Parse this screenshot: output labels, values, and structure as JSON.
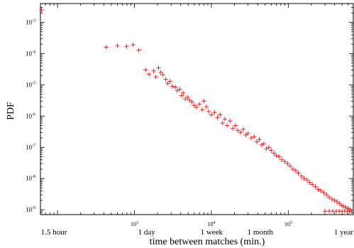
{
  "chart_data": {
    "type": "scatter",
    "xlabel": "time between matches (min.)",
    "ylabel": "PDF",
    "x_scale": "log",
    "y_scale": "log",
    "xlim": [
      60,
      700000
    ],
    "ylim": [
      7e-10,
      0.004
    ],
    "marker": "+",
    "marker_color": "#ee2222",
    "x_ticks": [
      {
        "value": 1000,
        "base": "10",
        "exp": "3"
      },
      {
        "value": 10000,
        "base": "10",
        "exp": "4"
      },
      {
        "value": 100000,
        "base": "10",
        "exp": "5"
      }
    ],
    "x_time_labels": [
      {
        "value": 90,
        "label": "1.5 hour"
      },
      {
        "value": 1440,
        "label": "1 day"
      },
      {
        "value": 10080,
        "label": "1 week"
      },
      {
        "value": 43200,
        "label": "1 month"
      },
      {
        "value": 525600,
        "label": "1 year"
      }
    ],
    "y_ticks": [
      {
        "value": 1e-09,
        "base": "10",
        "exp": "-9"
      },
      {
        "value": 1e-08,
        "base": "10",
        "exp": "-8"
      },
      {
        "value": 1e-07,
        "base": "10",
        "exp": "-7"
      },
      {
        "value": 1e-06,
        "base": "10",
        "exp": "-6"
      },
      {
        "value": 1e-05,
        "base": "10",
        "exp": "-5"
      },
      {
        "value": 0.0001,
        "base": "10",
        "exp": "-4"
      },
      {
        "value": 0.001,
        "base": "10",
        "exp": "-3"
      }
    ],
    "points": [
      [
        62,
        0.0025
      ],
      [
        430,
        0.00016
      ],
      [
        600,
        0.00018
      ],
      [
        790,
        0.00017
      ],
      [
        960,
        0.00019
      ],
      [
        1140,
        0.00013
      ],
      [
        1400,
        3e-05
      ],
      [
        1550,
        2.2e-05
      ],
      [
        1780,
        2.8e-05
      ],
      [
        1900,
        1.8e-05
      ],
      [
        2060,
        3.5e-05
      ],
      [
        2200,
        2.5e-05
      ],
      [
        2350,
        2.1e-05
      ],
      [
        2550,
        1.5e-05
      ],
      [
        2700,
        1.1e-05
      ],
      [
        2900,
        1.3e-05
      ],
      [
        3100,
        9e-06
      ],
      [
        3400,
        8.5e-06
      ],
      [
        3600,
        6.5e-06
      ],
      [
        3900,
        7.2e-06
      ],
      [
        4100,
        4.5e-06
      ],
      [
        4300,
        5.5e-06
      ],
      [
        4600,
        3.5e-06
      ],
      [
        4900,
        4e-06
      ],
      [
        5200,
        3.2e-06
      ],
      [
        5600,
        2.8e-06
      ],
      [
        6000,
        2.2e-06
      ],
      [
        6400,
        1.9e-06
      ],
      [
        7000,
        2.4e-06
      ],
      [
        7600,
        1.6e-06
      ],
      [
        8000,
        3e-06
      ],
      [
        8600,
        2e-06
      ],
      [
        9200,
        1.4e-06
      ],
      [
        10000,
        1.1e-06
      ],
      [
        11000,
        1.3e-06
      ],
      [
        12000,
        9e-07
      ],
      [
        13000,
        1.1e-06
      ],
      [
        14000,
        6e-07
      ],
      [
        15000,
        8e-07
      ],
      [
        16000,
        5e-07
      ],
      [
        17500,
        7e-07
      ],
      [
        19000,
        4e-07
      ],
      [
        20500,
        5e-07
      ],
      [
        22000,
        3.5e-07
      ],
      [
        24000,
        3e-07
      ],
      [
        26000,
        3.8e-07
      ],
      [
        28000,
        2.5e-07
      ],
      [
        30000,
        2.8e-07
      ],
      [
        33000,
        2e-07
      ],
      [
        36000,
        2.2e-07
      ],
      [
        39000,
        1.5e-07
      ],
      [
        42000,
        1.8e-07
      ],
      [
        45000,
        1.2e-07
      ],
      [
        48000,
        1.3e-07
      ],
      [
        52000,
        9e-08
      ],
      [
        56000,
        1e-07
      ],
      [
        60000,
        8e-08
      ],
      [
        65000,
        6.5e-08
      ],
      [
        70000,
        5.5e-08
      ],
      [
        76000,
        5e-08
      ],
      [
        82000,
        4e-08
      ],
      [
        90000,
        3.5e-08
      ],
      [
        98000,
        3e-08
      ],
      [
        106000,
        2.5e-08
      ],
      [
        115000,
        2e-08
      ],
      [
        125000,
        1.8e-08
      ],
      [
        135000,
        1.5e-08
      ],
      [
        148000,
        1.2e-08
      ],
      [
        160000,
        1e-08
      ],
      [
        175000,
        9e-09
      ],
      [
        190000,
        7.5e-09
      ],
      [
        205000,
        6.5e-09
      ],
      [
        225000,
        5.5e-09
      ],
      [
        245000,
        4.5e-09
      ],
      [
        265000,
        4e-09
      ],
      [
        290000,
        3.5e-09
      ],
      [
        315000,
        3e-09
      ],
      [
        340000,
        2.5e-09
      ],
      [
        370000,
        2.2e-09
      ],
      [
        400000,
        2e-09
      ],
      [
        430000,
        1.8e-09
      ],
      [
        460000,
        1.6e-09
      ],
      [
        490000,
        1.4e-09
      ],
      [
        520000,
        1.3e-09
      ],
      [
        560000,
        1.2e-09
      ],
      [
        600000,
        1.1e-09
      ],
      [
        640000,
        1e-09
      ],
      [
        300000,
        9e-10
      ],
      [
        340000,
        9e-10
      ],
      [
        380000,
        9e-10
      ],
      [
        420000,
        9e-10
      ],
      [
        460000,
        9e-10
      ],
      [
        500000,
        9e-10
      ],
      [
        540000,
        9e-10
      ],
      [
        580000,
        9e-10
      ],
      [
        620000,
        9e-10
      ],
      [
        660000,
        9e-10
      ]
    ]
  }
}
